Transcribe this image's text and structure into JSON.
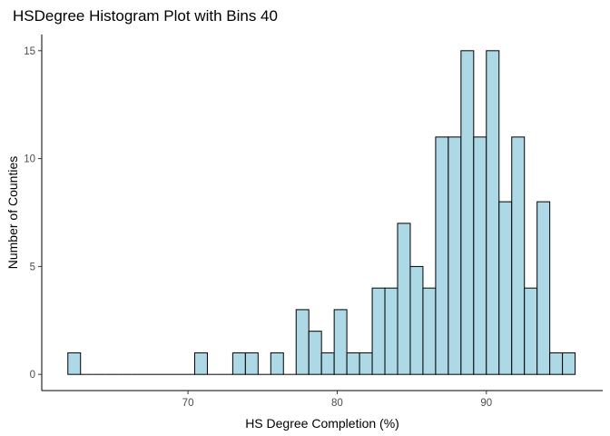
{
  "chart_data": {
    "type": "bar",
    "title": "HSDegree Histogram Plot with Bins 40",
    "xlabel": "HS Degree Completion (%)",
    "ylabel": "Number of Counties",
    "xlim": [
      60.2,
      97.8
    ],
    "ylim": [
      -0.75,
      15.75
    ],
    "x_ticks": [
      70,
      80,
      90
    ],
    "y_ticks": [
      0,
      5,
      10,
      15
    ],
    "bin_start": 61.95,
    "bin_width": 0.85,
    "counts": [
      1,
      0,
      0,
      0,
      0,
      0,
      0,
      0,
      0,
      0,
      1,
      0,
      0,
      1,
      1,
      0,
      1,
      0,
      3,
      2,
      1,
      3,
      1,
      1,
      4,
      4,
      7,
      5,
      4,
      11,
      11,
      15,
      11,
      15,
      8,
      11,
      4,
      8,
      1,
      1
    ],
    "fill_color": "#add8e6",
    "edge_color": "#000000",
    "grid": false
  }
}
